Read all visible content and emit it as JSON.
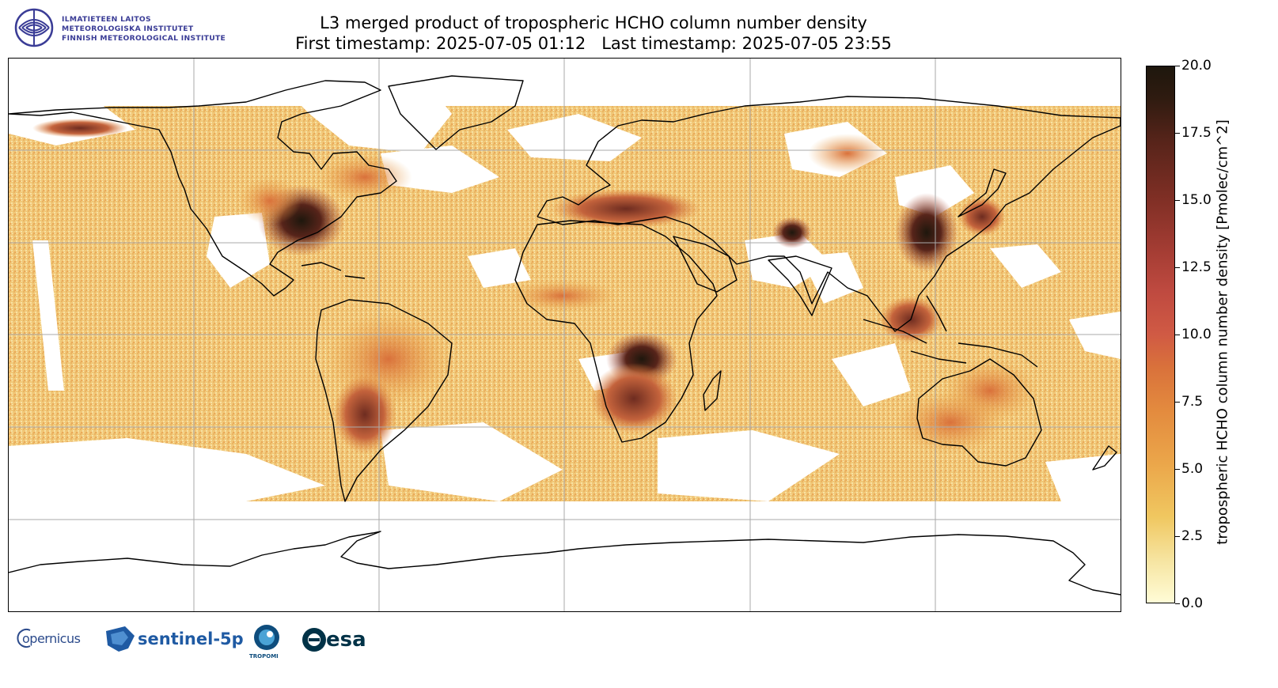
{
  "header": {
    "logo_lines": [
      "ILMATIETEEN LAITOS",
      "METEOROLOGISKA INSTITUTET",
      "FINNISH METEOROLOGICAL INSTITUTE"
    ],
    "title": "L3 merged product of tropospheric HCHO column number density",
    "subtitle": "First timestamp: 2025-07-05 01:12   Last timestamp: 2025-07-05 23:55"
  },
  "map": {
    "projection": "plate-carree",
    "gridlines": true,
    "graticule_lon_deg": [
      -120,
      -60,
      0,
      60,
      120
    ],
    "graticule_lat_deg": [
      60,
      30,
      0,
      -30,
      -60
    ],
    "coastlines": true
  },
  "colorbar": {
    "label": "tropospheric HCHO column number density [Pmolec/cm^2]",
    "min": 0.0,
    "max": 20.0,
    "ticks": [
      "0.0",
      "2.5",
      "5.0",
      "7.5",
      "10.0",
      "12.5",
      "15.0",
      "17.5",
      "20.0"
    ],
    "colormap": [
      "#fffcd6",
      "#f0c760",
      "#e38a3e",
      "#d05a44",
      "#a33c33",
      "#57241a",
      "#1e170d"
    ]
  },
  "footer_logos": {
    "copernicus": "opernicus",
    "copernicus_initial": "C",
    "sentinel": "sentinel-5p",
    "tropomi": "TROPOMI",
    "esa": "esa"
  }
}
